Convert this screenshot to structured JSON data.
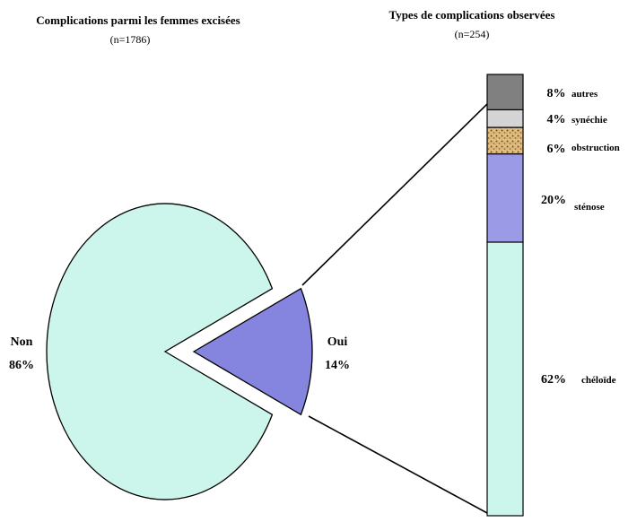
{
  "chart_data": [
    {
      "type": "pie",
      "title": "Complications parmi les femmes excisées",
      "subtitle": "(n=1786)",
      "slices": [
        {
          "name": "Non",
          "label": "86%",
          "value": 86,
          "color": "#ccf5ec",
          "exploded": false
        },
        {
          "name": "Oui",
          "label": "14%",
          "value": 14,
          "color": "#8585e0",
          "exploded": true
        }
      ]
    },
    {
      "type": "bar",
      "stacked": true,
      "title": "Types de complications observées",
      "subtitle": "(n=254)",
      "segments": [
        {
          "name": "chéloïde",
          "label": "62%",
          "value": 62,
          "color": "#ccf5ec"
        },
        {
          "name": "sténose",
          "label": "20%",
          "value": 20,
          "color": "#9a9ae6"
        },
        {
          "name": "obstruction",
          "label": "6%",
          "value": 6,
          "color": "#7a4a1a",
          "pattern": "speckle"
        },
        {
          "name": "synéchie",
          "label": "4%",
          "value": 4,
          "color": "#d4d4d4"
        },
        {
          "name": "autres",
          "label": "8%",
          "value": 8,
          "color": "#808080"
        }
      ]
    }
  ]
}
